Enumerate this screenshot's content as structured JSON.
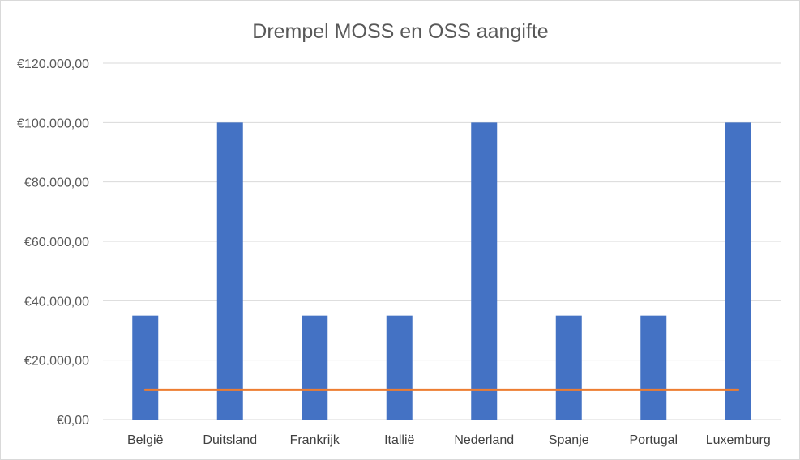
{
  "chart_data": {
    "type": "bar",
    "title": "Drempel MOSS en OSS aangifte",
    "categories": [
      "België",
      "Duitsland",
      "Frankrijk",
      "Itallië",
      "Nederland",
      "Spanje",
      "Portugal",
      "Luxemburg"
    ],
    "series": [
      {
        "type": "bar",
        "values": [
          35000,
          100000,
          35000,
          35000,
          100000,
          35000,
          35000,
          100000
        ],
        "color": "#4472c4"
      },
      {
        "type": "line",
        "values": [
          10000,
          10000,
          10000,
          10000,
          10000,
          10000,
          10000,
          10000
        ],
        "color": "#ed7d31"
      }
    ],
    "ylim": [
      0,
      120000
    ],
    "yticks": [
      0,
      20000,
      40000,
      60000,
      80000,
      100000,
      120000
    ],
    "ytick_labels": [
      "€0,00",
      "€20.000,00",
      "€40.000,00",
      "€60.000,00",
      "€80.000,00",
      "€100.000,00",
      "€120.000,00"
    ],
    "grid": true,
    "legend": "none"
  }
}
